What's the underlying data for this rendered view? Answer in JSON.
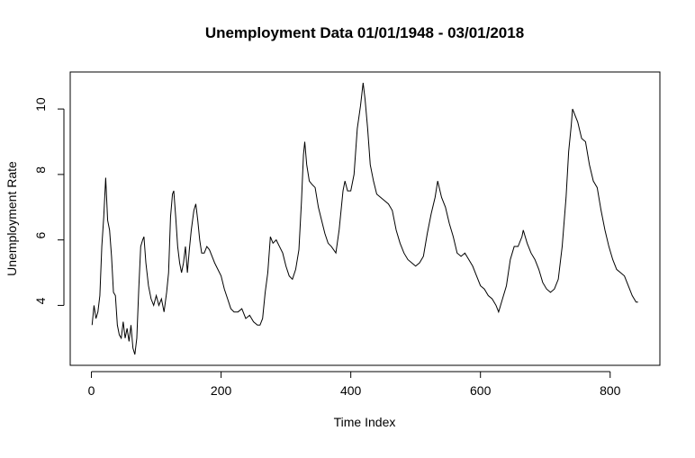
{
  "chart_data": {
    "type": "line",
    "title": "Unemployment Data 01/01/1948 - 03/01/2018",
    "x_label": "Time Index",
    "y_label": "Unemployment Rate",
    "xlim": [
      -32.7,
      876.7
    ],
    "ylim": [
      2.17,
      11.13
    ],
    "xticks": [
      0,
      200,
      400,
      600,
      800
    ],
    "yticks": [
      4,
      6,
      8,
      10
    ],
    "series": [
      {
        "color": "#000000",
        "x": [
          1,
          4,
          7,
          10,
          13,
          16,
          19,
          22,
          25,
          28,
          31,
          34,
          37,
          40,
          43,
          46,
          49,
          52,
          55,
          58,
          61,
          64,
          67,
          70,
          73,
          76,
          79,
          81,
          84,
          88,
          92,
          96,
          100,
          104,
          108,
          112,
          116,
          119,
          122,
          125,
          127,
          130,
          133,
          136,
          139,
          142,
          145,
          148,
          151,
          154,
          158,
          161,
          164,
          167,
          170,
          174,
          178,
          182,
          186,
          190,
          195,
          200,
          205,
          210,
          215,
          220,
          226,
          232,
          238,
          244,
          250,
          256,
          260,
          264,
          268,
          272,
          276,
          280,
          285,
          290,
          295,
          300,
          305,
          310,
          315,
          320,
          324,
          327,
          329,
          332,
          336,
          340,
          345,
          350,
          355,
          360,
          365,
          370,
          377,
          382,
          388,
          391,
          395,
          400,
          405,
          410,
          415,
          419,
          422,
          426,
          430,
          435,
          440,
          446,
          452,
          458,
          464,
          470,
          476,
          482,
          488,
          494,
          500,
          506,
          512,
          518,
          524,
          530,
          534,
          540,
          546,
          552,
          558,
          564,
          570,
          576,
          582,
          588,
          594,
          600,
          606,
          612,
          618,
          624,
          628,
          634,
          640,
          646,
          652,
          658,
          664,
          666,
          672,
          678,
          684,
          690,
          696,
          702,
          708,
          714,
          720,
          726,
          732,
          736,
          740,
          742,
          746,
          750,
          756,
          762,
          768,
          774,
          780,
          786,
          792,
          798,
          804,
          810,
          816,
          822,
          828,
          834,
          840,
          843
        ],
        "values": [
          3.4,
          4.0,
          3.6,
          3.8,
          4.3,
          5.8,
          6.7,
          7.9,
          6.6,
          6.3,
          5.5,
          4.4,
          4.3,
          3.4,
          3.1,
          3.0,
          3.5,
          3.0,
          3.3,
          2.9,
          3.4,
          2.7,
          2.5,
          3.0,
          4.5,
          5.8,
          6.0,
          6.1,
          5.3,
          4.6,
          4.2,
          4.0,
          4.3,
          4.0,
          4.2,
          3.8,
          4.4,
          5.0,
          6.7,
          7.4,
          7.5,
          6.7,
          5.8,
          5.3,
          5.0,
          5.3,
          5.8,
          5.0,
          5.7,
          6.3,
          6.9,
          7.1,
          6.6,
          6.0,
          5.6,
          5.6,
          5.8,
          5.7,
          5.5,
          5.3,
          5.1,
          4.9,
          4.5,
          4.2,
          3.9,
          3.8,
          3.8,
          3.9,
          3.6,
          3.7,
          3.5,
          3.4,
          3.4,
          3.6,
          4.4,
          5.0,
          6.1,
          5.9,
          6.0,
          5.8,
          5.6,
          5.2,
          4.9,
          4.8,
          5.1,
          5.7,
          7.2,
          8.6,
          9.0,
          8.3,
          7.8,
          7.7,
          7.6,
          7.0,
          6.6,
          6.2,
          5.9,
          5.8,
          5.6,
          6.3,
          7.5,
          7.8,
          7.5,
          7.5,
          8.0,
          9.4,
          10.1,
          10.8,
          10.3,
          9.4,
          8.3,
          7.8,
          7.4,
          7.3,
          7.2,
          7.1,
          6.9,
          6.3,
          5.9,
          5.6,
          5.4,
          5.3,
          5.2,
          5.3,
          5.5,
          6.2,
          6.8,
          7.3,
          7.8,
          7.3,
          7.0,
          6.5,
          6.1,
          5.6,
          5.5,
          5.6,
          5.4,
          5.2,
          4.9,
          4.6,
          4.5,
          4.3,
          4.2,
          4.0,
          3.8,
          4.2,
          4.6,
          5.4,
          5.8,
          5.8,
          6.1,
          6.3,
          5.9,
          5.6,
          5.4,
          5.1,
          4.7,
          4.5,
          4.4,
          4.5,
          4.8,
          5.8,
          7.3,
          8.7,
          9.5,
          10.0,
          9.8,
          9.6,
          9.1,
          9.0,
          8.3,
          7.8,
          7.6,
          6.9,
          6.3,
          5.8,
          5.4,
          5.1,
          5.0,
          4.9,
          4.6,
          4.3,
          4.1,
          4.1
        ]
      }
    ]
  }
}
